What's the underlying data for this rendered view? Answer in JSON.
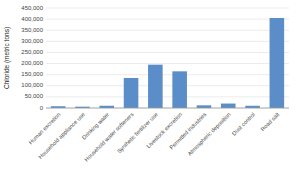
{
  "chart_data": {
    "type": "bar",
    "categories": [
      "Human excretion",
      "Household appliance use",
      "Drinking water",
      "Household water softeners",
      "Synthetic fertilizer use",
      "Livestock excretion",
      "Permitted industries",
      "Atmospheric deposition",
      "Dust control",
      "Road salt"
    ],
    "values": [
      8000,
      6000,
      10000,
      135000,
      195000,
      165000,
      12000,
      20000,
      10000,
      405000
    ],
    "color": "#5B8DC8",
    "ylabel": "Chloride (metric tons)",
    "ylim": [
      0,
      450000
    ],
    "yticks": [
      0,
      {
        "value": 50000,
        "label": "50,000"
      },
      {
        "value": 100000,
        "label": "100,000"
      },
      {
        "value": 150000,
        "label": "150,000"
      },
      {
        "value": 200000,
        "label": "200,000"
      },
      {
        "value": 250000,
        "label": "250,000"
      },
      {
        "value": 300000,
        "label": "300,000"
      },
      {
        "value": 350000,
        "label": "350,000"
      },
      {
        "value": 400000,
        "label": "400,000"
      },
      {
        "value": 450000,
        "label": "450,000"
      }
    ],
    "grid": true
  }
}
